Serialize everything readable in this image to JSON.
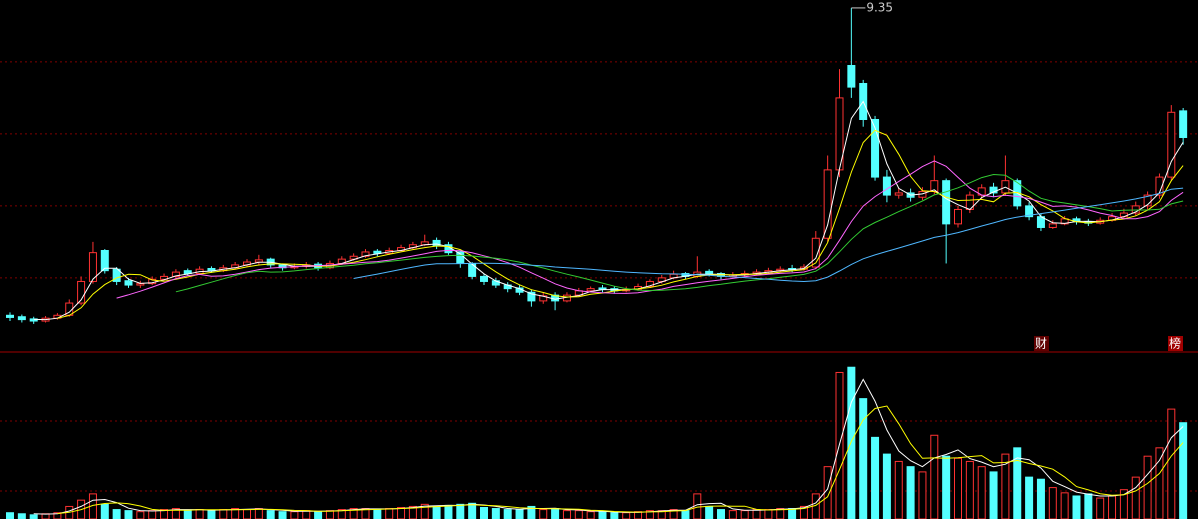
{
  "chart_data": {
    "type": "candlestick",
    "open": [
      5.08,
      5.06,
      5.03,
      5.0,
      5.04,
      5.08,
      5.25,
      5.55,
      5.98,
      5.72,
      5.56,
      5.5,
      5.52,
      5.58,
      5.62,
      5.7,
      5.66,
      5.73,
      5.7,
      5.74,
      5.78,
      5.82,
      5.86,
      5.78,
      5.74,
      5.76,
      5.79,
      5.74,
      5.8,
      5.86,
      5.9,
      5.97,
      5.94,
      5.98,
      6.02,
      6.06,
      6.12,
      6.06,
      5.96,
      5.8,
      5.62,
      5.56,
      5.5,
      5.46,
      5.4,
      5.28,
      5.36,
      5.28,
      5.36,
      5.42,
      5.46,
      5.45,
      5.42,
      5.44,
      5.48,
      5.55,
      5.6,
      5.66,
      5.62,
      5.69,
      5.66,
      5.62,
      5.64,
      5.66,
      5.68,
      5.7,
      5.73,
      5.72,
      5.75,
      6.15,
      7.1,
      8.55,
      8.3,
      7.8,
      7.0,
      6.75,
      6.78,
      6.72,
      6.8,
      6.95,
      6.35,
      6.55,
      6.75,
      6.86,
      6.78,
      6.95,
      6.6,
      6.45,
      6.3,
      6.35,
      6.42,
      6.38,
      6.36,
      6.4,
      6.45,
      6.5,
      6.6,
      6.75,
      7.0,
      7.92
    ],
    "high": [
      5.12,
      5.09,
      5.06,
      5.07,
      5.11,
      5.3,
      5.62,
      6.1,
      6.0,
      5.75,
      5.6,
      5.56,
      5.62,
      5.66,
      5.72,
      5.73,
      5.76,
      5.76,
      5.78,
      5.82,
      5.86,
      5.92,
      5.88,
      5.8,
      5.8,
      5.82,
      5.82,
      5.84,
      5.9,
      5.94,
      6.0,
      6.0,
      6.02,
      6.06,
      6.1,
      6.2,
      6.16,
      6.1,
      5.98,
      5.82,
      5.66,
      5.6,
      5.54,
      5.5,
      5.44,
      5.4,
      5.4,
      5.4,
      5.46,
      5.48,
      5.5,
      5.48,
      5.48,
      5.52,
      5.58,
      5.64,
      5.7,
      5.68,
      5.9,
      5.72,
      5.68,
      5.68,
      5.7,
      5.72,
      5.74,
      5.76,
      5.78,
      5.79,
      6.25,
      7.3,
      8.5,
      9.35,
      8.35,
      7.85,
      7.1,
      6.85,
      6.84,
      6.86,
      7.3,
      6.98,
      6.6,
      6.8,
      6.9,
      6.92,
      7.3,
      6.98,
      6.65,
      6.5,
      6.4,
      6.46,
      6.45,
      6.42,
      6.44,
      6.5,
      6.56,
      6.66,
      6.8,
      7.05,
      8.0,
      7.96
    ],
    "low": [
      5.0,
      4.98,
      4.96,
      4.98,
      5.02,
      5.06,
      5.22,
      5.52,
      5.66,
      5.5,
      5.46,
      5.46,
      5.5,
      5.56,
      5.6,
      5.63,
      5.64,
      5.67,
      5.68,
      5.72,
      5.76,
      5.78,
      5.74,
      5.7,
      5.72,
      5.73,
      5.7,
      5.72,
      5.78,
      5.84,
      5.88,
      5.9,
      5.92,
      5.96,
      6.0,
      6.04,
      6.0,
      5.92,
      5.74,
      5.58,
      5.5,
      5.46,
      5.4,
      5.36,
      5.2,
      5.24,
      5.15,
      5.26,
      5.34,
      5.4,
      5.4,
      5.38,
      5.4,
      5.42,
      5.46,
      5.52,
      5.58,
      5.58,
      5.6,
      5.62,
      5.58,
      5.6,
      5.62,
      5.64,
      5.66,
      5.68,
      5.68,
      5.7,
      5.72,
      6.1,
      7.0,
      8.1,
      7.7,
      6.95,
      6.65,
      6.7,
      6.66,
      6.68,
      6.76,
      5.8,
      6.3,
      6.5,
      6.7,
      6.72,
      6.74,
      6.55,
      6.4,
      6.25,
      6.28,
      6.33,
      6.34,
      6.32,
      6.34,
      6.38,
      6.42,
      6.46,
      6.55,
      6.7,
      6.95,
      7.45
    ],
    "close": [
      5.05,
      5.02,
      5.0,
      5.04,
      5.08,
      5.25,
      5.55,
      5.95,
      5.7,
      5.55,
      5.5,
      5.52,
      5.58,
      5.62,
      5.68,
      5.66,
      5.72,
      5.7,
      5.74,
      5.78,
      5.82,
      5.85,
      5.78,
      5.74,
      5.76,
      5.78,
      5.74,
      5.8,
      5.86,
      5.9,
      5.96,
      5.94,
      5.98,
      6.02,
      6.06,
      6.1,
      6.05,
      5.95,
      5.8,
      5.62,
      5.55,
      5.5,
      5.45,
      5.4,
      5.28,
      5.35,
      5.28,
      5.36,
      5.42,
      5.45,
      5.44,
      5.42,
      5.44,
      5.48,
      5.55,
      5.6,
      5.65,
      5.62,
      5.68,
      5.65,
      5.62,
      5.64,
      5.66,
      5.68,
      5.7,
      5.72,
      5.72,
      5.75,
      6.15,
      7.1,
      8.1,
      8.25,
      7.8,
      7.0,
      6.75,
      6.78,
      6.72,
      6.8,
      6.95,
      6.35,
      6.55,
      6.75,
      6.85,
      6.78,
      6.95,
      6.6,
      6.45,
      6.3,
      6.35,
      6.42,
      6.38,
      6.36,
      6.4,
      6.45,
      6.5,
      6.6,
      6.75,
      7.0,
      7.9,
      7.55
    ],
    "volume": [
      6,
      5,
      4,
      5,
      6,
      12,
      18,
      24,
      14,
      9,
      8,
      7,
      8,
      9,
      10,
      8,
      9,
      8,
      9,
      10,
      9,
      10,
      8,
      7,
      7,
      8,
      7,
      8,
      9,
      10,
      10,
      9,
      10,
      11,
      12,
      14,
      12,
      13,
      14,
      15,
      11,
      10,
      9,
      9,
      12,
      9,
      10,
      8,
      8,
      7,
      7,
      6,
      6,
      7,
      8,
      8,
      9,
      8,
      24,
      12,
      9,
      8,
      8,
      9,
      9,
      10,
      10,
      12,
      24,
      50,
      140,
      145,
      115,
      78,
      62,
      55,
      50,
      45,
      80,
      60,
      58,
      55,
      50,
      45,
      62,
      68,
      40,
      38,
      30,
      25,
      22,
      24,
      20,
      22,
      28,
      40,
      60,
      68,
      105,
      92
    ],
    "ylim": [
      4.57,
      9.46
    ],
    "yticks": [
      5.6,
      6.6,
      7.6,
      8.6
    ],
    "volume_ylim": [
      0,
      150
    ],
    "up_color": "#ff3232",
    "down_color": "#54ffff",
    "grid": true,
    "moving_averages": [
      {
        "period": 3,
        "color": "#ffffff"
      },
      {
        "period": 5,
        "color": "#ffff00"
      },
      {
        "period": 10,
        "color": "#ff66ff"
      },
      {
        "period": 15,
        "color": "#33cc33"
      },
      {
        "period": 30,
        "color": "#4fb7ff"
      }
    ],
    "volume_moving_averages": [
      {
        "period": 3,
        "color": "#ffffff"
      },
      {
        "period": 5,
        "color": "#ffff00"
      }
    ],
    "markers": [
      "财",
      "榜"
    ]
  }
}
